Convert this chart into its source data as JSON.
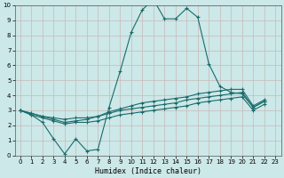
{
  "xlabel": "Humidex (Indice chaleur)",
  "xlim": [
    -0.5,
    23.5
  ],
  "ylim": [
    0,
    10
  ],
  "xticks": [
    0,
    1,
    2,
    3,
    4,
    5,
    6,
    7,
    8,
    9,
    10,
    11,
    12,
    13,
    14,
    15,
    16,
    17,
    18,
    19,
    20,
    21,
    22,
    23
  ],
  "yticks": [
    0,
    1,
    2,
    3,
    4,
    5,
    6,
    7,
    8,
    9,
    10
  ],
  "bg_color": "#cce8e8",
  "grid_color": "#aacece",
  "line_color": "#1a6b6b",
  "series_x": [
    0,
    1,
    2,
    3,
    4,
    5,
    6,
    7,
    8,
    9,
    10,
    11,
    12,
    13,
    14,
    15,
    16,
    17,
    18,
    19,
    20,
    21,
    22
  ],
  "series": [
    [
      3.0,
      2.7,
      2.2,
      1.1,
      0.1,
      1.1,
      0.3,
      0.4,
      3.2,
      5.6,
      8.2,
      9.7,
      10.4,
      9.1,
      9.1,
      9.8,
      9.2,
      6.1,
      4.6,
      4.2,
      4.1,
      3.2,
      3.6
    ],
    [
      3.0,
      2.8,
      2.6,
      2.4,
      2.2,
      2.3,
      2.4,
      2.6,
      2.9,
      3.1,
      3.3,
      3.5,
      3.6,
      3.7,
      3.8,
      3.9,
      4.1,
      4.2,
      4.3,
      4.4,
      4.4,
      3.3,
      3.7
    ],
    [
      3.0,
      2.8,
      2.6,
      2.5,
      2.4,
      2.5,
      2.5,
      2.6,
      2.8,
      3.0,
      3.1,
      3.2,
      3.3,
      3.4,
      3.5,
      3.7,
      3.8,
      3.9,
      4.0,
      4.1,
      4.2,
      3.2,
      3.6
    ],
    [
      3.0,
      2.7,
      2.5,
      2.3,
      2.1,
      2.2,
      2.2,
      2.3,
      2.5,
      2.7,
      2.8,
      2.9,
      3.0,
      3.1,
      3.2,
      3.3,
      3.5,
      3.6,
      3.7,
      3.8,
      3.9,
      3.0,
      3.4
    ]
  ]
}
